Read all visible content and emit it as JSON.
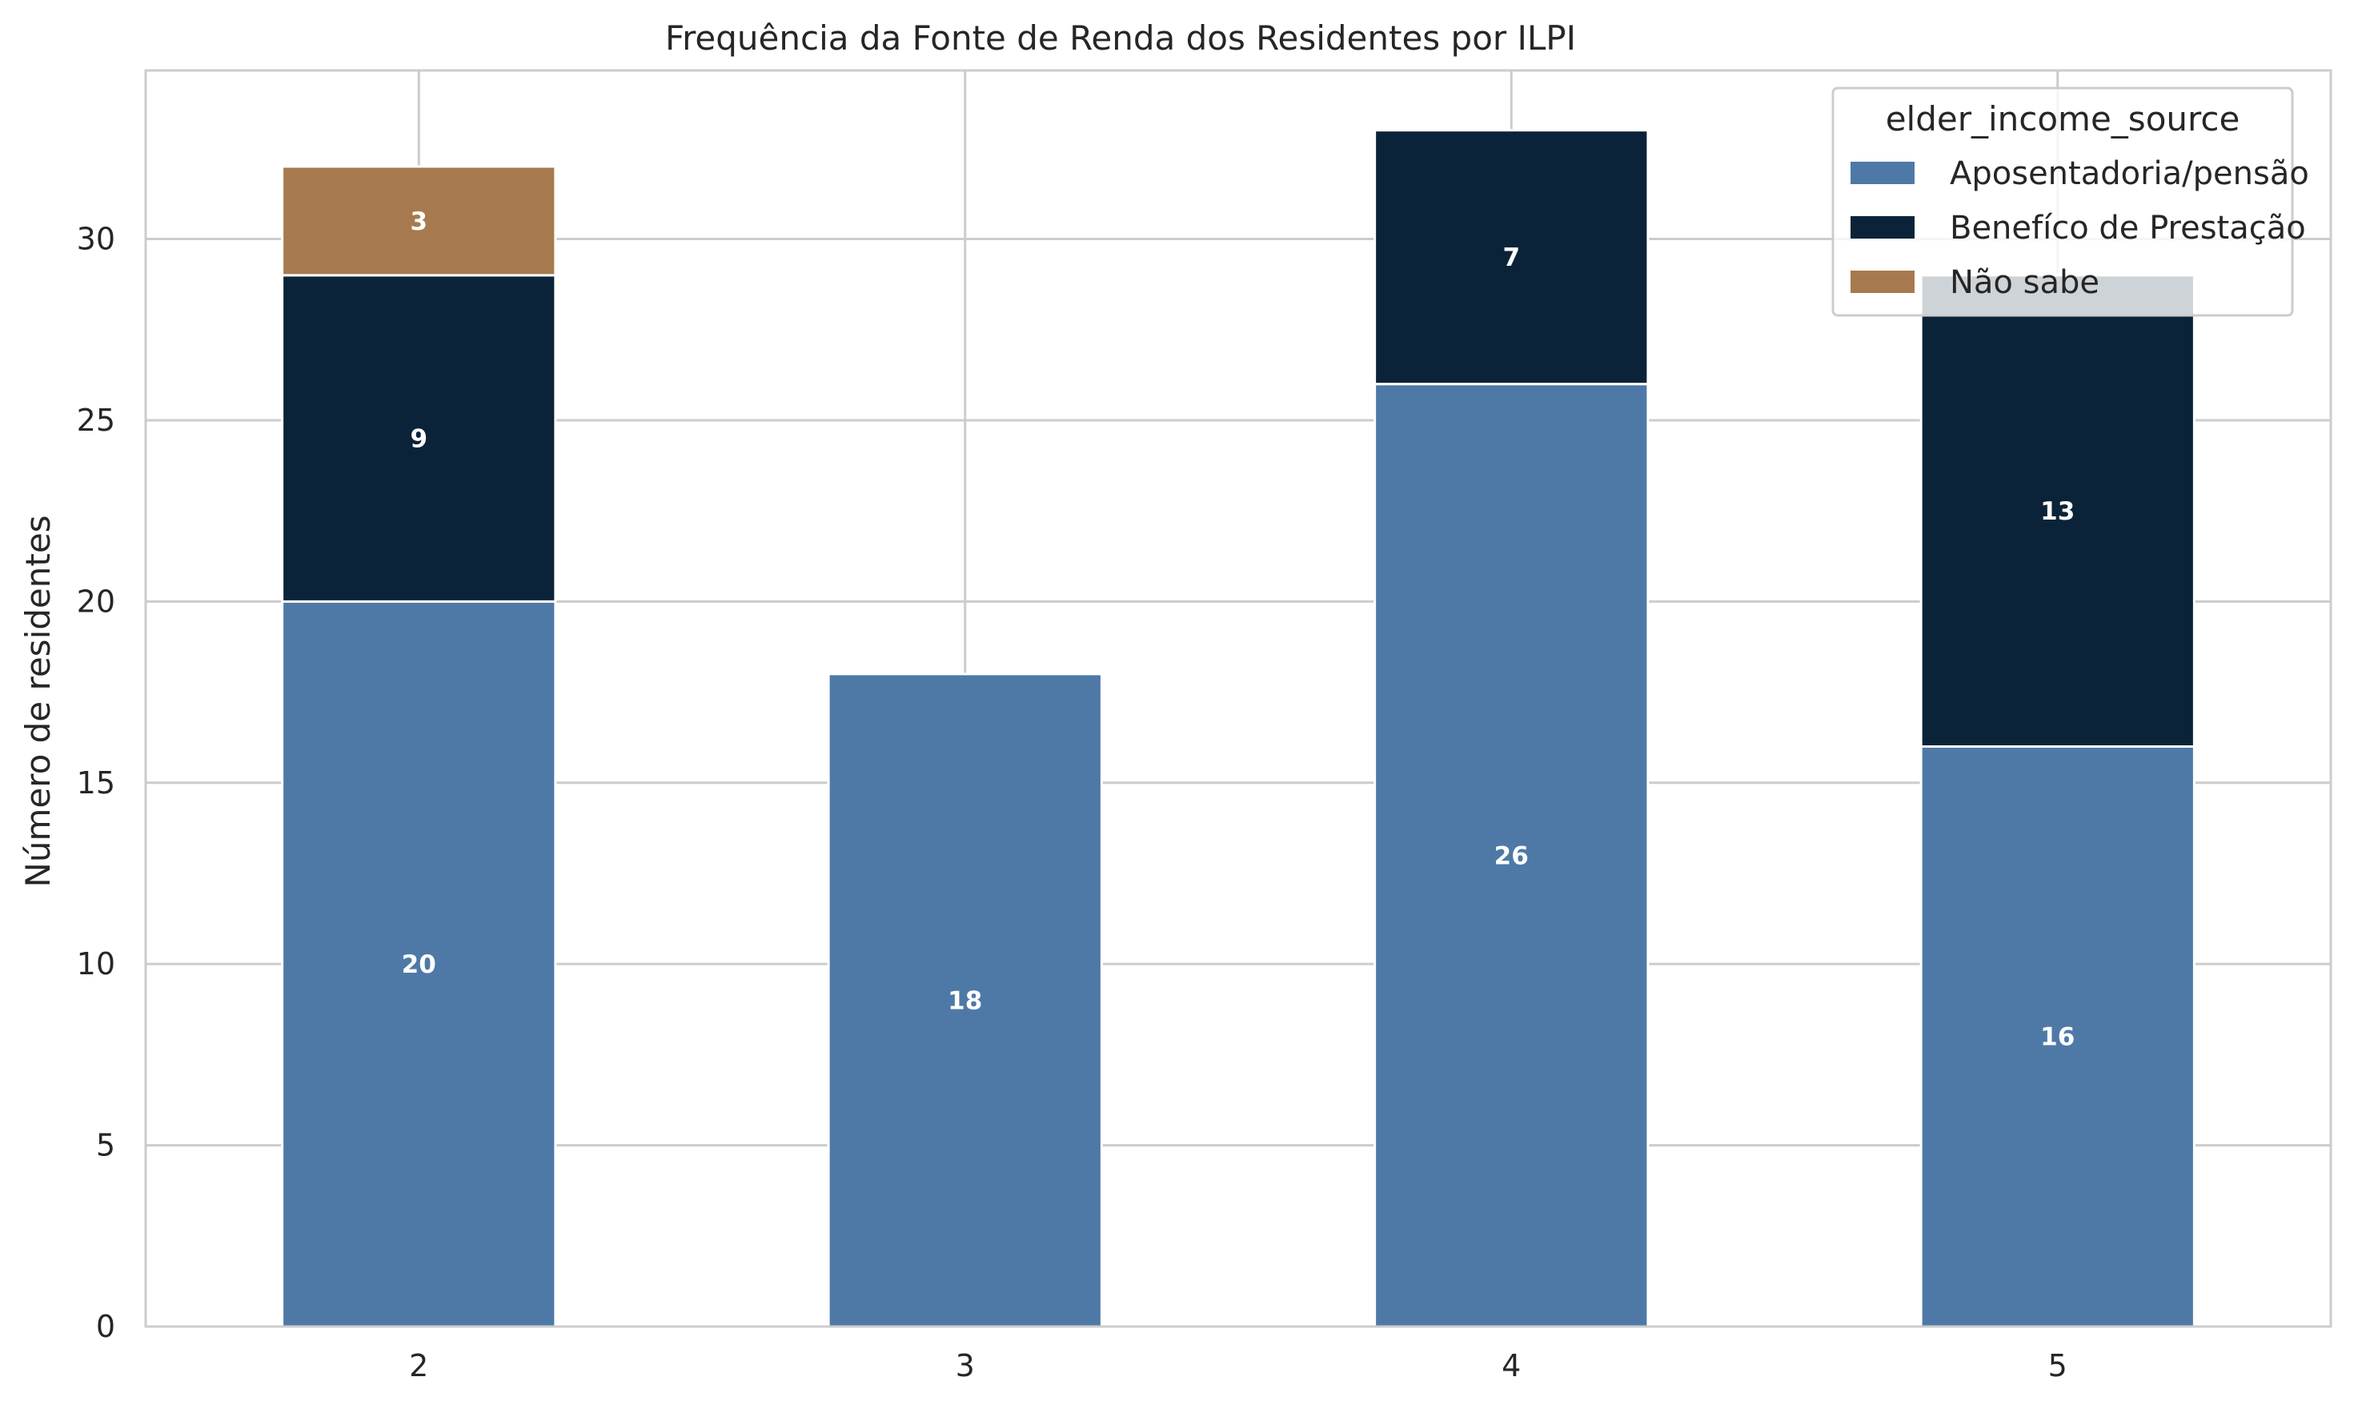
{
  "chart_data": {
    "type": "bar",
    "stacked": true,
    "title": "Frequência da Fonte de Renda dos Residentes por ILPI",
    "xlabel": "",
    "ylabel": "Número de residentes",
    "categories": [
      "2",
      "3",
      "4",
      "5"
    ],
    "series": [
      {
        "name": "Aposentadoria/pensão",
        "values": [
          20,
          18,
          26,
          16
        ],
        "color": "#4e79a7"
      },
      {
        "name": "Benefíco de Prestação",
        "values": [
          9,
          0,
          7,
          13
        ],
        "color": "#0b2338"
      },
      {
        "name": "Não sabe",
        "values": [
          3,
          0,
          0,
          0
        ],
        "color": "#a67a4e"
      }
    ],
    "ylim": [
      0,
      34.65
    ],
    "yticks": [
      0,
      5,
      10,
      15,
      20,
      25,
      30
    ],
    "grid": true,
    "legend": {
      "title": "elder_income_source",
      "placement": "top-right"
    }
  }
}
